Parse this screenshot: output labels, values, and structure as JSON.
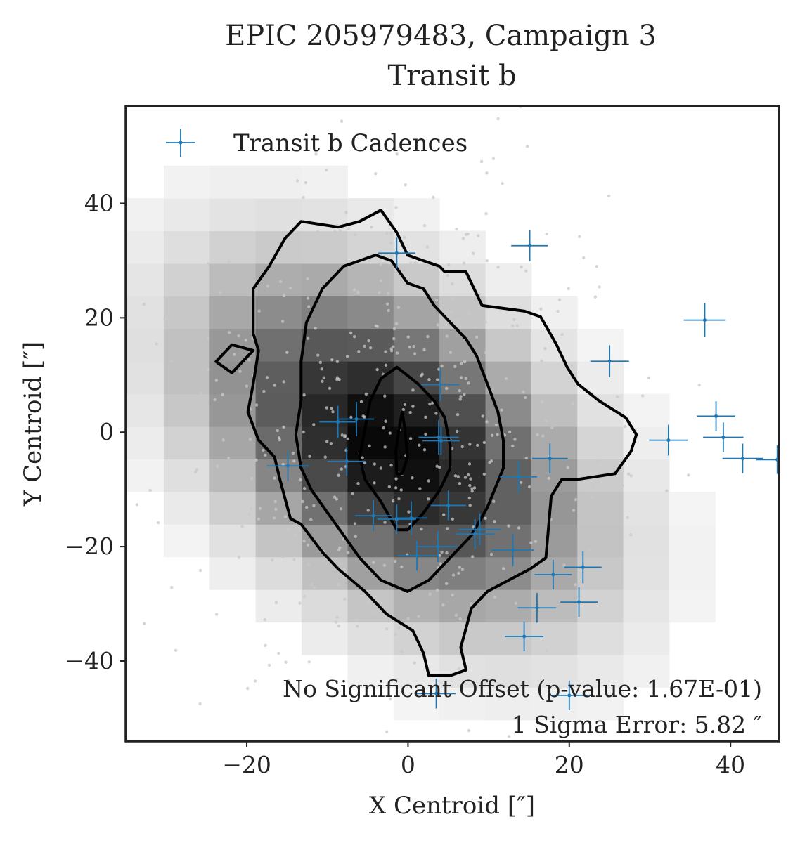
{
  "chart_data": {
    "type": "scatter",
    "title": "EPIC 205979483, Campaign 3",
    "subtitle": "Transit b",
    "xlabel": "X Centroid [″]",
    "ylabel": "Y Centroid [″]",
    "xlim": [
      -35,
      46
    ],
    "ylim": [
      -54,
      57
    ],
    "xticks": [
      -20,
      0,
      20,
      40
    ],
    "yticks": [
      -40,
      -20,
      0,
      20,
      40
    ],
    "xtick_labels": [
      "−20",
      "0",
      "20",
      "40"
    ],
    "ytick_labels": [
      "−40",
      "−20",
      "0",
      "20",
      "40"
    ],
    "grid": false,
    "legend": {
      "placement": "top-left",
      "entries": [
        "Transit b Cadences"
      ]
    },
    "annotations": [
      "No Significant Offset (p-value: 1.67E-01)",
      "1 Sigma Error: 5.82 ″"
    ],
    "colors": {
      "transit": "#1f77b4",
      "contour": "#000000",
      "background_points": "#bbbbbb"
    },
    "series": [
      {
        "name": "Transit b Cadences",
        "points": [
          {
            "x": -1.4,
            "y": 31.3,
            "xerr": 2.3,
            "yerr": 2.7
          },
          {
            "x": 15.1,
            "y": 32.6,
            "xerr": 2.3,
            "yerr": 2.7
          },
          {
            "x": 36.8,
            "y": 19.6,
            "xerr": 2.6,
            "yerr": 3.0
          },
          {
            "x": 25.0,
            "y": 12.4,
            "xerr": 2.4,
            "yerr": 2.8
          },
          {
            "x": 4.0,
            "y": 8.3,
            "xerr": 2.4,
            "yerr": 2.9
          },
          {
            "x": -8.7,
            "y": 1.8,
            "xerr": 2.3,
            "yerr": 2.8
          },
          {
            "x": -6.4,
            "y": 2.3,
            "xerr": 2.2,
            "yerr": 3.0
          },
          {
            "x": 38.2,
            "y": 2.8,
            "xerr": 2.4,
            "yerr": 2.6
          },
          {
            "x": 32.3,
            "y": -1.4,
            "xerr": 2.4,
            "yerr": 2.7
          },
          {
            "x": 39.1,
            "y": -0.9,
            "xerr": 2.5,
            "yerr": 2.6
          },
          {
            "x": 3.8,
            "y": -0.9,
            "xerr": 2.5,
            "yerr": 3.0
          },
          {
            "x": 4.1,
            "y": -1.5,
            "xerr": 2.3,
            "yerr": 2.4
          },
          {
            "x": 41.5,
            "y": -4.6,
            "xerr": 2.5,
            "yerr": 2.6
          },
          {
            "x": 45.8,
            "y": -4.8,
            "xerr": 2.6,
            "yerr": 2.5
          },
          {
            "x": -7.6,
            "y": -5.1,
            "xerr": 2.4,
            "yerr": 2.5
          },
          {
            "x": -14.9,
            "y": -5.9,
            "xerr": 2.6,
            "yerr": 2.6
          },
          {
            "x": 17.6,
            "y": -4.6,
            "xerr": 2.2,
            "yerr": 2.6
          },
          {
            "x": 13.7,
            "y": -7.8,
            "xerr": 2.3,
            "yerr": 2.8
          },
          {
            "x": 5.0,
            "y": -12.8,
            "xerr": 2.2,
            "yerr": 2.6
          },
          {
            "x": -4.3,
            "y": -14.6,
            "xerr": 2.3,
            "yerr": 2.7
          },
          {
            "x": -1.4,
            "y": -15.2,
            "xerr": 2.4,
            "yerr": 2.6
          },
          {
            "x": 0.4,
            "y": -15.0,
            "xerr": 2.0,
            "yerr": 2.9
          },
          {
            "x": 8.3,
            "y": -17.8,
            "xerr": 2.4,
            "yerr": 2.6
          },
          {
            "x": 8.9,
            "y": -17.0,
            "xerr": 2.6,
            "yerr": 2.8
          },
          {
            "x": 3.7,
            "y": -20.0,
            "xerr": 2.5,
            "yerr": 2.7
          },
          {
            "x": 13.0,
            "y": -20.6,
            "xerr": 2.6,
            "yerr": 2.8
          },
          {
            "x": 1.1,
            "y": -21.6,
            "xerr": 2.4,
            "yerr": 2.6
          },
          {
            "x": 21.7,
            "y": -23.6,
            "xerr": 2.3,
            "yerr": 2.8
          },
          {
            "x": 18.0,
            "y": -24.9,
            "xerr": 2.3,
            "yerr": 2.6
          },
          {
            "x": 21.2,
            "y": -29.7,
            "xerr": 2.3,
            "yerr": 2.6
          },
          {
            "x": 16.0,
            "y": -30.7,
            "xerr": 2.4,
            "yerr": 2.6
          },
          {
            "x": 14.4,
            "y": -35.7,
            "xerr": 2.4,
            "yerr": 2.6
          },
          {
            "x": 3.5,
            "y": -45.7,
            "xerr": 2.4,
            "yerr": 2.6
          },
          {
            "x": 20.0,
            "y": -46.0,
            "xerr": 2.4,
            "yerr": 2.6
          }
        ]
      }
    ]
  }
}
